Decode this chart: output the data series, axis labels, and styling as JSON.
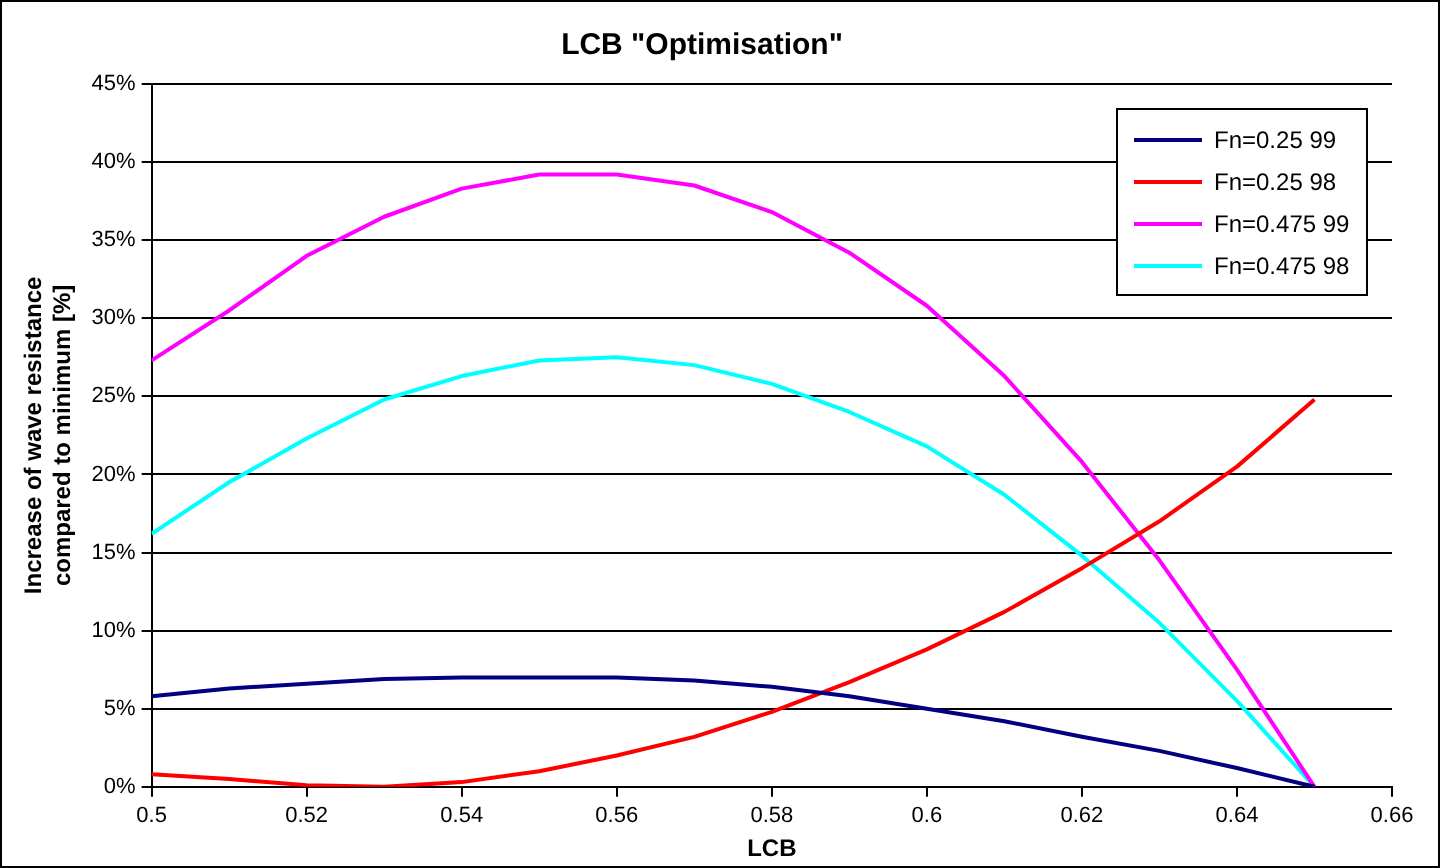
{
  "chart_data": {
    "type": "line",
    "title": "LCB \"Optimisation\"",
    "xlabel": "LCB",
    "ylabel": "Increase of wave resistance compared to minimum [%]",
    "xlim": [
      0.5,
      0.66
    ],
    "xticks": [
      0.5,
      0.52,
      0.54,
      0.56,
      0.58,
      0.6,
      0.62,
      0.64,
      0.66
    ],
    "ylim": [
      0,
      45
    ],
    "yticks": [
      {
        "value": 0,
        "label": "0%"
      },
      {
        "value": 5,
        "label": "5%"
      },
      {
        "value": 10,
        "label": "10%"
      },
      {
        "value": 15,
        "label": "15%"
      },
      {
        "value": 20,
        "label": "20%"
      },
      {
        "value": 25,
        "label": "25%"
      },
      {
        "value": 30,
        "label": "30%"
      },
      {
        "value": 35,
        "label": "35%"
      },
      {
        "value": 40,
        "label": "40%"
      },
      {
        "value": 45,
        "label": "45%"
      }
    ],
    "grid": "y",
    "legend": "top right",
    "marker": "none",
    "line_style": "solid",
    "series": [
      {
        "name": "Fn=0.25 99",
        "color": "#000080",
        "x": [
          0.5,
          0.51,
          0.52,
          0.53,
          0.54,
          0.55,
          0.56,
          0.57,
          0.58,
          0.59,
          0.6,
          0.61,
          0.62,
          0.63,
          0.64,
          0.65
        ],
        "values": [
          5.8,
          6.3,
          6.6,
          6.9,
          7.0,
          7.0,
          7.0,
          6.8,
          6.4,
          5.8,
          5.0,
          4.2,
          3.2,
          2.3,
          1.2,
          0
        ]
      },
      {
        "name": "Fn=0.25 98",
        "color": "#ff0000",
        "x": [
          0.5,
          0.51,
          0.52,
          0.53,
          0.54,
          0.55,
          0.56,
          0.57,
          0.58,
          0.59,
          0.6,
          0.61,
          0.62,
          0.63,
          0.64,
          0.65
        ],
        "values": [
          0.8,
          0.5,
          0.1,
          0,
          0.3,
          1.0,
          2.0,
          3.2,
          4.8,
          6.7,
          8.8,
          11.2,
          14.0,
          17.0,
          20.5,
          24.8
        ]
      },
      {
        "name": "Fn=0.475 99",
        "color": "#ff00ff",
        "x": [
          0.5,
          0.51,
          0.52,
          0.53,
          0.54,
          0.55,
          0.56,
          0.57,
          0.58,
          0.59,
          0.6,
          0.61,
          0.62,
          0.63,
          0.64,
          0.65
        ],
        "values": [
          27.3,
          30.5,
          34.0,
          36.5,
          38.3,
          39.2,
          39.2,
          38.5,
          36.8,
          34.2,
          30.8,
          26.3,
          20.8,
          14.5,
          7.5,
          0
        ]
      },
      {
        "name": "Fn=0.475 98",
        "color": "#00ffff",
        "x": [
          0.5,
          0.51,
          0.52,
          0.53,
          0.54,
          0.55,
          0.56,
          0.57,
          0.58,
          0.59,
          0.6,
          0.61,
          0.62,
          0.63,
          0.64,
          0.65
        ],
        "values": [
          16.2,
          19.5,
          22.3,
          24.8,
          26.3,
          27.3,
          27.5,
          27.0,
          25.8,
          24.0,
          21.8,
          18.7,
          14.8,
          10.5,
          5.5,
          0
        ]
      }
    ]
  }
}
